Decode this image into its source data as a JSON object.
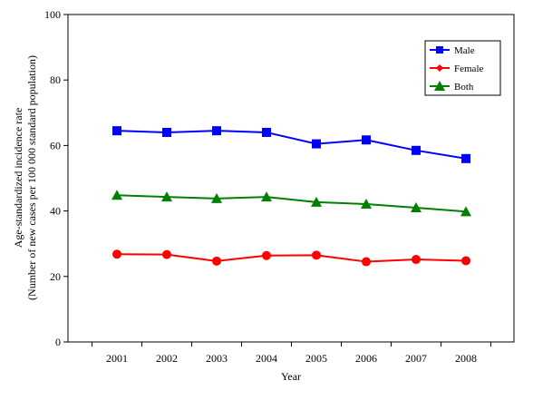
{
  "chart_data": {
    "type": "line",
    "title": "",
    "xlabel": "Year",
    "ylabel": "Age-standardized incidence rate",
    "ylabel_sub": "(Number of new cases per 100 000 standard population)",
    "categories": [
      "2001",
      "2002",
      "2003",
      "2004",
      "2005",
      "2006",
      "2007",
      "2008"
    ],
    "ylim": [
      0,
      100
    ],
    "yticks": [
      0,
      20,
      40,
      60,
      80,
      100
    ],
    "grid": false,
    "legend_position": "top-right",
    "series": [
      {
        "name": "Male",
        "color": "#0000ff",
        "marker": "square",
        "values": [
          64.5,
          64.0,
          64.5,
          64.0,
          60.5,
          61.7,
          58.5,
          56.0
        ]
      },
      {
        "name": "Female",
        "color": "#ff0000",
        "marker": "diamond-circle",
        "values": [
          26.8,
          26.7,
          24.7,
          26.4,
          26.5,
          24.5,
          25.2,
          24.8
        ]
      },
      {
        "name": "Both",
        "color": "#008000",
        "marker": "triangle",
        "values": [
          44.8,
          44.3,
          43.8,
          44.3,
          42.7,
          42.1,
          41.0,
          39.8
        ]
      }
    ]
  }
}
